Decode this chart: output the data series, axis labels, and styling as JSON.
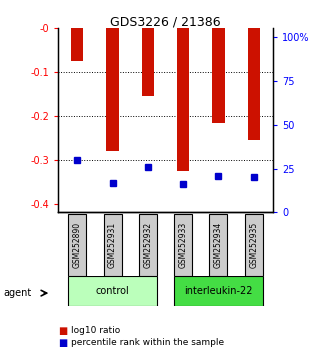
{
  "title": "GDS3226 / 21386",
  "samples": [
    "GSM252890",
    "GSM252931",
    "GSM252932",
    "GSM252933",
    "GSM252934",
    "GSM252935"
  ],
  "log10_ratio": [
    -0.075,
    -0.28,
    -0.155,
    -0.325,
    -0.215,
    -0.255
  ],
  "percentile_rank": [
    30,
    17,
    26,
    16,
    21,
    20
  ],
  "groups": [
    {
      "name": "control",
      "indices": [
        0,
        1,
        2
      ],
      "color": "#bbffbb"
    },
    {
      "name": "interleukin-22",
      "indices": [
        3,
        4,
        5
      ],
      "color": "#44dd44"
    }
  ],
  "ylim_left": [
    -0.42,
    0.0
  ],
  "ylim_right": [
    0,
    105
  ],
  "yticks_left": [
    -0.4,
    -0.3,
    -0.2,
    -0.1,
    0.0
  ],
  "yticks_right": [
    0,
    25,
    50,
    75,
    100
  ],
  "ytick_labels_left": [
    "-0.4",
    "-0.3",
    "-0.2",
    "-0.1",
    "-0"
  ],
  "ytick_labels_right": [
    "0",
    "25",
    "50",
    "75",
    "100%"
  ],
  "bar_color": "#cc1100",
  "marker_color": "#0000cc",
  "bar_width": 0.35,
  "sample_bg_color": "#cccccc",
  "agent_label": "agent",
  "legend_items": [
    {
      "color": "#cc1100",
      "label": "log10 ratio"
    },
    {
      "color": "#0000cc",
      "label": "percentile rank within the sample"
    }
  ]
}
